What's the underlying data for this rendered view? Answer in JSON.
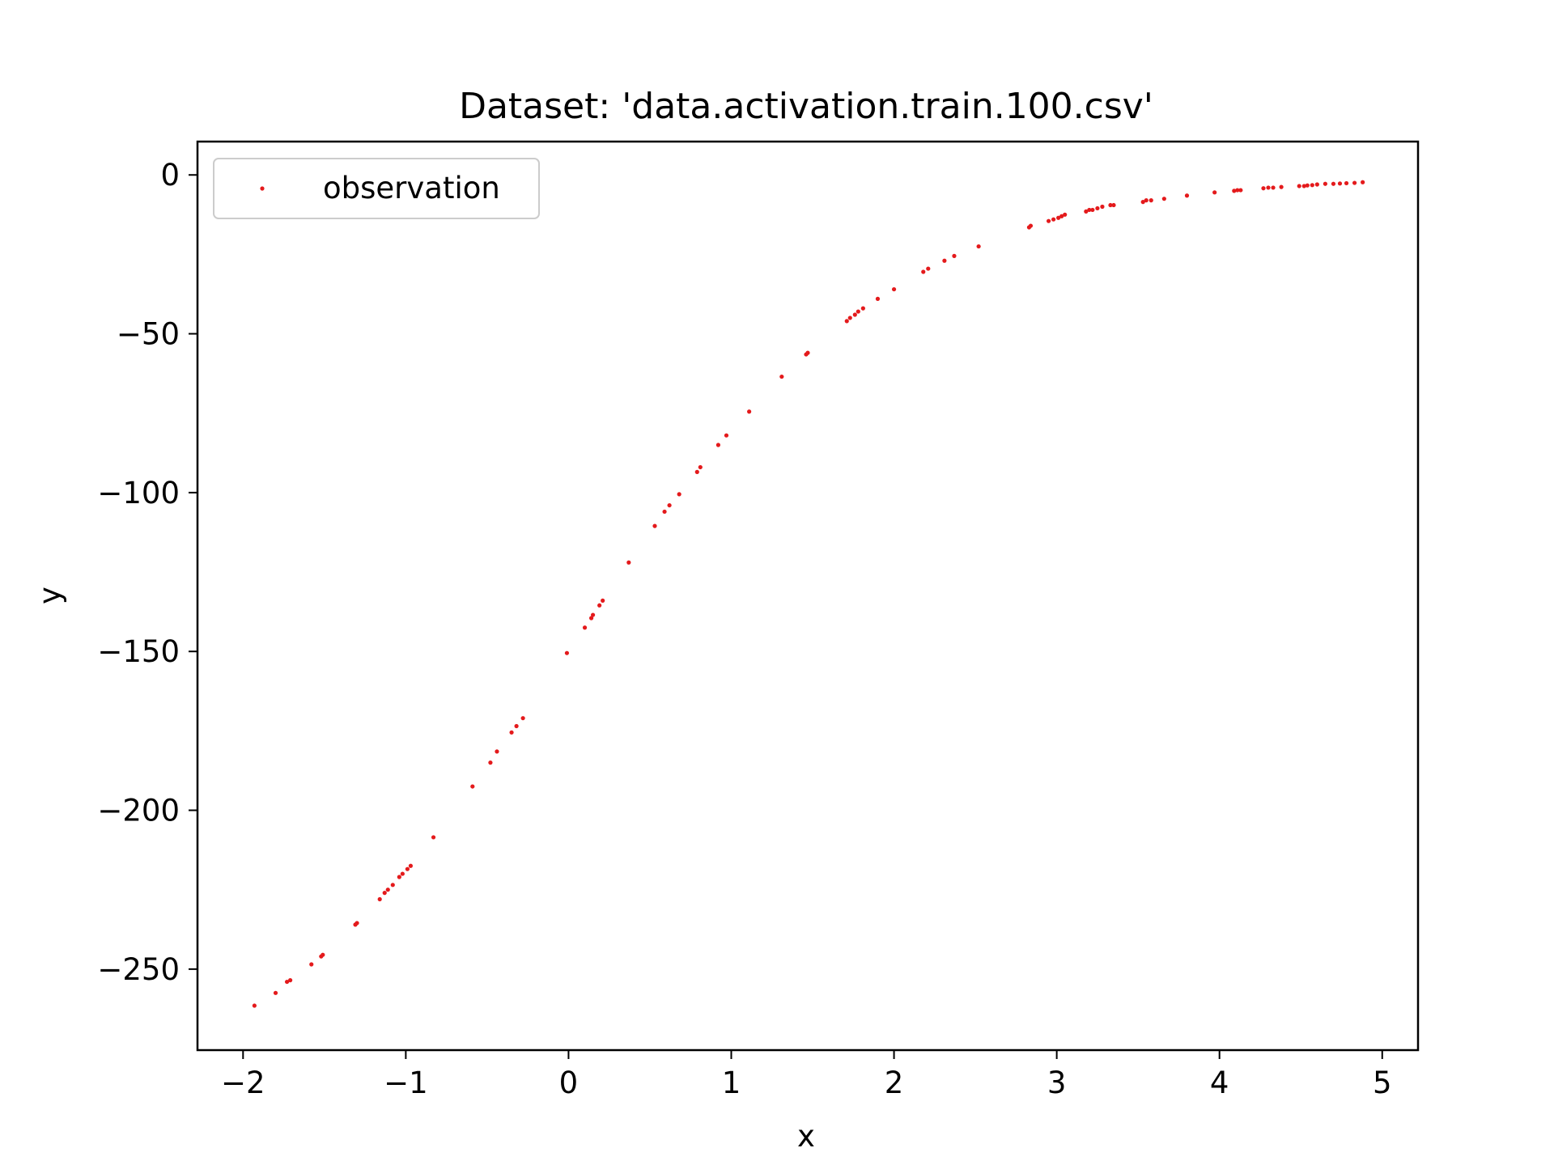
{
  "chart_data": {
    "type": "scatter",
    "title": "Dataset: 'data.activation.train.100.csv'",
    "xlabel": "x",
    "ylabel": "y",
    "xlim": [
      -2.28,
      5.22
    ],
    "ylim": [
      -275.5,
      10.5
    ],
    "xticks": [
      -2,
      -1,
      0,
      1,
      2,
      3,
      4,
      5
    ],
    "xtick_labels": [
      "−2",
      "−1",
      "0",
      "1",
      "2",
      "3",
      "4",
      "5"
    ],
    "yticks": [
      0,
      -50,
      -100,
      -150,
      -200,
      -250
    ],
    "ytick_labels": [
      "0",
      "−50",
      "−100",
      "−150",
      "−200",
      "−250"
    ],
    "grid": false,
    "legend_position": "top-left",
    "series": [
      {
        "name": "observation",
        "color": "#e41a1c",
        "marker": "dot",
        "points": [
          [
            -1.93,
            -261.5
          ],
          [
            -1.8,
            -257.5
          ],
          [
            -1.73,
            -254.0
          ],
          [
            -1.71,
            -253.5
          ],
          [
            -1.58,
            -248.5
          ],
          [
            -1.52,
            -246.0
          ],
          [
            -1.51,
            -245.5
          ],
          [
            -1.31,
            -236.0
          ],
          [
            -1.3,
            -235.5
          ],
          [
            -1.16,
            -228.0
          ],
          [
            -1.13,
            -226.0
          ],
          [
            -1.11,
            -225.0
          ],
          [
            -1.08,
            -223.5
          ],
          [
            -1.04,
            -221.0
          ],
          [
            -1.02,
            -220.0
          ],
          [
            -0.99,
            -218.5
          ],
          [
            -0.97,
            -217.5
          ],
          [
            -0.83,
            -208.5
          ],
          [
            -0.59,
            -192.5
          ],
          [
            -0.48,
            -185.0
          ],
          [
            -0.44,
            -181.5
          ],
          [
            -0.35,
            -175.5
          ],
          [
            -0.32,
            -173.5
          ],
          [
            -0.28,
            -171.0
          ],
          [
            -0.01,
            -150.5
          ],
          [
            0.1,
            -142.5
          ],
          [
            0.14,
            -139.5
          ],
          [
            0.15,
            -138.5
          ],
          [
            0.19,
            -135.5
          ],
          [
            0.21,
            -134.0
          ],
          [
            0.37,
            -122.0
          ],
          [
            0.53,
            -110.5
          ],
          [
            0.59,
            -106.0
          ],
          [
            0.62,
            -104.0
          ],
          [
            0.68,
            -100.5
          ],
          [
            0.79,
            -93.5
          ],
          [
            0.81,
            -92.0
          ],
          [
            0.92,
            -85.0
          ],
          [
            0.97,
            -82.0
          ],
          [
            1.11,
            -74.5
          ],
          [
            1.31,
            -63.5
          ],
          [
            1.46,
            -56.5
          ],
          [
            1.47,
            -56.0
          ],
          [
            1.71,
            -46.0
          ],
          [
            1.73,
            -45.0
          ],
          [
            1.76,
            -44.0
          ],
          [
            1.78,
            -43.0
          ],
          [
            1.81,
            -42.0
          ],
          [
            1.9,
            -39.0
          ],
          [
            2.0,
            -36.0
          ],
          [
            2.18,
            -30.5
          ],
          [
            2.21,
            -29.5
          ],
          [
            2.31,
            -27.0
          ],
          [
            2.37,
            -25.5
          ],
          [
            2.52,
            -22.5
          ],
          [
            2.83,
            -16.5
          ],
          [
            2.84,
            -16.0
          ],
          [
            2.95,
            -14.5
          ],
          [
            2.98,
            -14.0
          ],
          [
            3.01,
            -13.5
          ],
          [
            3.03,
            -13.0
          ],
          [
            3.05,
            -12.5
          ],
          [
            3.18,
            -11.5
          ],
          [
            3.2,
            -11.0
          ],
          [
            3.22,
            -11.0
          ],
          [
            3.25,
            -10.5
          ],
          [
            3.28,
            -10.0
          ],
          [
            3.33,
            -9.5
          ],
          [
            3.35,
            -9.5
          ],
          [
            3.53,
            -8.5
          ],
          [
            3.55,
            -8.0
          ],
          [
            3.58,
            -8.0
          ],
          [
            3.66,
            -7.5
          ],
          [
            3.8,
            -6.5
          ],
          [
            3.97,
            -5.5
          ],
          [
            4.09,
            -5.0
          ],
          [
            4.11,
            -4.8
          ],
          [
            4.13,
            -4.8
          ],
          [
            4.27,
            -4.2
          ],
          [
            4.3,
            -4.0
          ],
          [
            4.33,
            -4.0
          ],
          [
            4.38,
            -3.8
          ],
          [
            4.49,
            -3.5
          ],
          [
            4.52,
            -3.5
          ],
          [
            4.54,
            -3.3
          ],
          [
            4.57,
            -3.2
          ],
          [
            4.6,
            -3.0
          ],
          [
            4.65,
            -2.8
          ],
          [
            4.7,
            -2.8
          ],
          [
            4.74,
            -2.7
          ],
          [
            4.78,
            -2.6
          ],
          [
            4.83,
            -2.5
          ],
          [
            4.88,
            -2.3
          ]
        ]
      }
    ]
  }
}
